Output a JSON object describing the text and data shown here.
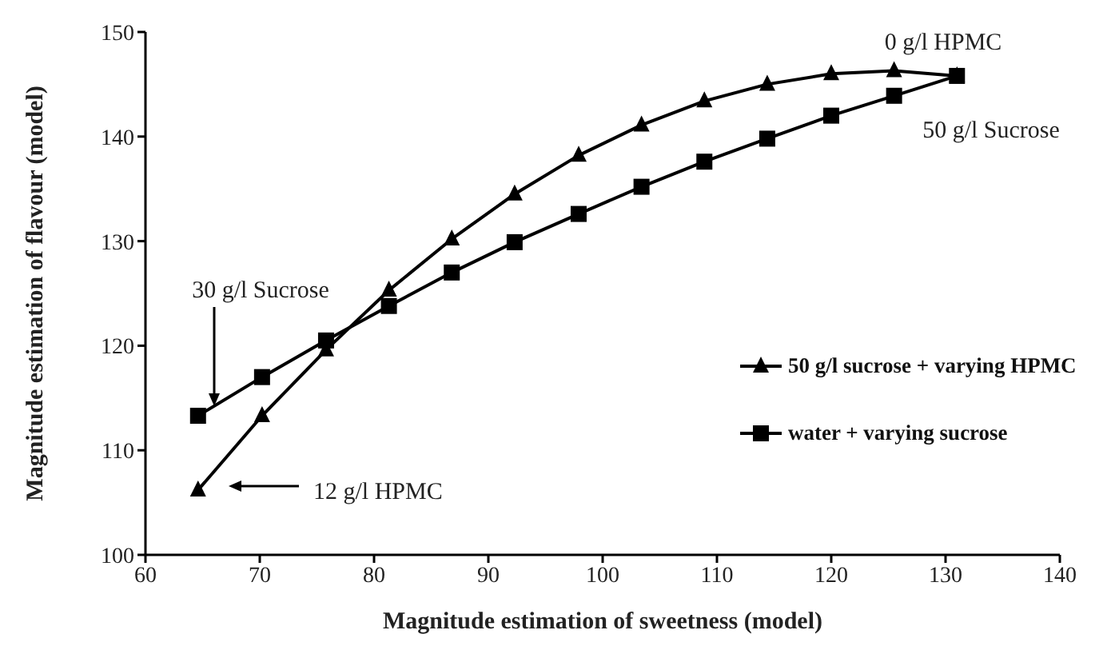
{
  "chart_data": {
    "type": "line",
    "xlabel": "Magnitude estimation of sweetness (model)",
    "ylabel": "Magnitude estimation of flavour (model)",
    "xlim": [
      60,
      140
    ],
    "xticks": [
      60,
      70,
      80,
      90,
      100,
      110,
      120,
      130,
      140
    ],
    "ylim": [
      100,
      150
    ],
    "yticks": [
      100,
      110,
      120,
      130,
      140,
      150
    ],
    "grid": false,
    "legend": "right",
    "series": [
      {
        "name": "50 g/l sucrose + varying HPMC",
        "color": "#000000",
        "marker": "triangle",
        "x": [
          64.6,
          70.2,
          75.8,
          81.3,
          86.8,
          92.3,
          97.9,
          103.4,
          108.9,
          114.4,
          120,
          125.5,
          131
        ],
        "values": [
          106.2,
          113.3,
          119.6,
          125.3,
          130.2,
          134.5,
          138.2,
          141.1,
          143.4,
          145.0,
          146.0,
          146.3,
          145.8
        ]
      },
      {
        "name": "water + varying sucrose",
        "color": "#000000",
        "marker": "square",
        "x": [
          64.6,
          70.2,
          75.8,
          81.3,
          86.8,
          92.3,
          97.9,
          103.4,
          108.9,
          114.4,
          120,
          125.5,
          131
        ],
        "values": [
          113.3,
          117.0,
          120.5,
          123.8,
          127.0,
          129.9,
          132.6,
          135.2,
          137.6,
          139.8,
          142.0,
          143.9,
          145.8
        ]
      }
    ],
    "annotations": [
      "0 g/l HPMC",
      "50 g/l Sucrose",
      "30 g/l Sucrose",
      "12 g/l HPMC"
    ]
  }
}
